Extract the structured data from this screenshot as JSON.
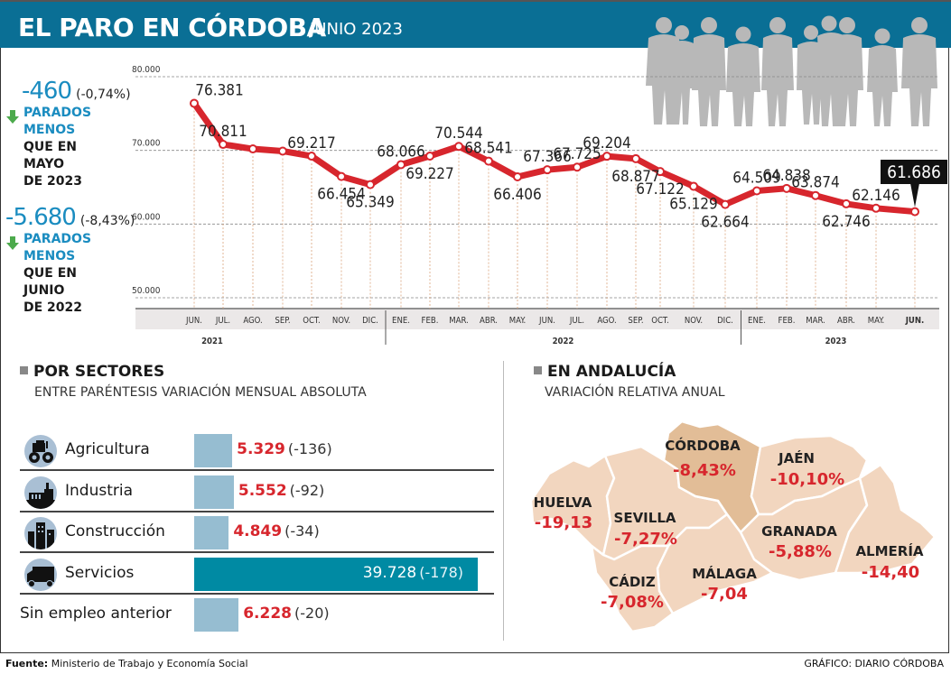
{
  "header": {
    "title": "EL PARO EN CÓRDOBA",
    "subtitle": "JUNIO 2023"
  },
  "colors": {
    "banner": "#0a6f95",
    "line": "#d7262d",
    "accent_blue": "#1a8cc0",
    "bar": "#96bdd1",
    "bar_highlight": "#008aa3",
    "map_fill": "#f2d6bf",
    "map_highlight": "#e2bd97"
  },
  "kpis": [
    {
      "value": "-460",
      "pct": "(-0,74%)",
      "line1": "PARADOS",
      "line2": "MENOS",
      "line3": "QUE EN",
      "line4": "MAYO",
      "line5": "DE 2023",
      "icon": "down-arrow-icon"
    },
    {
      "value": "-5.680",
      "pct": "(-8,43%)",
      "line1": "PARADOS",
      "line2": "MENOS",
      "line3": "QUE EN",
      "line4": "JUNIO",
      "line5": "DE 2022",
      "icon": "down-arrow-icon"
    }
  ],
  "chart_data": {
    "type": "line",
    "title": "EL PARO EN CÓRDOBA",
    "xlabel": "",
    "ylabel": "",
    "ylim": [
      50000,
      80000
    ],
    "yticks": [
      {
        "value": 80000,
        "label": "80.000"
      },
      {
        "value": 70000,
        "label": "70.000"
      },
      {
        "value": 60000,
        "label": "60.000"
      },
      {
        "value": 50000,
        "label": "50.000"
      }
    ],
    "grid": true,
    "categories": [
      "JUN.",
      "JUL.",
      "AGO.",
      "SEP.",
      "OCT.",
      "NOV.",
      "DIC.",
      "ENE.",
      "FEB.",
      "MAR.",
      "ABR.",
      "MAY.",
      "JUN.",
      "JUL.",
      "AGO.",
      "SEP.",
      "OCT.",
      "NOV.",
      "DIC.",
      "ENE.",
      "FEB.",
      "MAR.",
      "ABR.",
      "MAY.",
      "JUN."
    ],
    "years": [
      {
        "label": "2021",
        "from": 0,
        "to": 6
      },
      {
        "label": "2022",
        "from": 7,
        "to": 18
      },
      {
        "label": "2023",
        "from": 19,
        "to": 24
      }
    ],
    "series": [
      {
        "name": "Parados",
        "values": [
          76381,
          70811,
          70200,
          69900,
          69217,
          66454,
          65349,
          68066,
          69227,
          70544,
          68541,
          66406,
          67366,
          67725,
          69204,
          68877,
          67122,
          65129,
          62664,
          64509,
          64838,
          63874,
          62746,
          62146,
          61686
        ],
        "labels": [
          "76.381",
          "70.811",
          "",
          "",
          "69.217",
          "66.454",
          "65.349",
          "68.066",
          "69.227",
          "70.544",
          "68.541",
          "66.406",
          "67.366",
          "67.725",
          "69.204",
          "68.877",
          "67.122",
          "65.129",
          "62.664",
          "64.509",
          "64.838",
          "63.874",
          "62.746",
          "62.146",
          "61.686"
        ],
        "label_pos": [
          "above",
          "above",
          "",
          "",
          "above",
          "below",
          "below",
          "above",
          "below",
          "above",
          "above",
          "below",
          "above",
          "above",
          "above",
          "below",
          "below",
          "below",
          "below",
          "above",
          "above",
          "above",
          "below",
          "above",
          "callout"
        ]
      }
    ],
    "highlight": {
      "index": 24,
      "label": "61.686"
    }
  },
  "sectors": {
    "title": "POR SECTORES",
    "subtitle": "ENTRE PARÉNTESIS VARIACIÓN MENSUAL ABSOLUTA",
    "max": 39728,
    "items": [
      {
        "label": "Agricultura",
        "value": 5329,
        "value_text": "5.329",
        "change": "(-136)",
        "icon": "tractor-icon"
      },
      {
        "label": "Industria",
        "value": 5552,
        "value_text": "5.552",
        "change": "(-92)",
        "icon": "factory-icon"
      },
      {
        "label": "Construcción",
        "value": 4849,
        "value_text": "4.849",
        "change": "(-34)",
        "icon": "buildings-icon"
      },
      {
        "label": "Servicios",
        "value": 39728,
        "value_text": "39.728",
        "change": "(-178)",
        "icon": "truck-icon"
      },
      {
        "label": "Sin empleo anterior",
        "value": 6228,
        "value_text": "6.228",
        "change": "(-20)",
        "icon": ""
      }
    ]
  },
  "andalucia": {
    "title": "EN ANDALUCÍA",
    "subtitle": "VARIACIÓN RELATIVA ANUAL",
    "provinces": [
      {
        "name": "CÓRDOBA",
        "value": "-8,43%",
        "highlight": true
      },
      {
        "name": "JAÉN",
        "value": "-10,10%"
      },
      {
        "name": "HUELVA",
        "value": "-19,13"
      },
      {
        "name": "SEVILLA",
        "value": "-7,27%"
      },
      {
        "name": "GRANADA",
        "value": "-5,88%"
      },
      {
        "name": "ALMERÍA",
        "value": "-14,40"
      },
      {
        "name": "CÁDIZ",
        "value": "-7,08%"
      },
      {
        "name": "MÁLAGA",
        "value": "-7,04"
      }
    ]
  },
  "footer": {
    "source_label": "Fuente:",
    "source": "Ministerio de Trabajo y Economía Social",
    "credit": "GRÁFICO: DIARIO CÓRDOBA"
  }
}
